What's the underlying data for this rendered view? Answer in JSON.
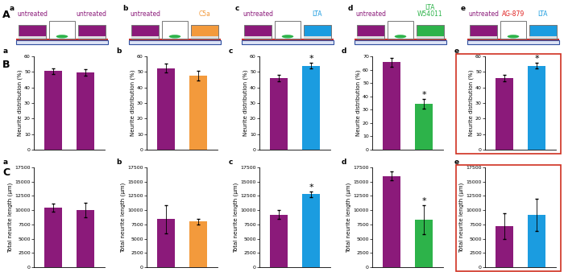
{
  "row_labels": [
    "A",
    "B",
    "C"
  ],
  "schematics": [
    {
      "panel": "a",
      "left_well": [
        {
          "text": "untreated",
          "color": "#8B1A7A"
        }
      ],
      "center_well": [],
      "right_well": [
        {
          "text": "untreated",
          "color": "#8B1A7A"
        }
      ]
    },
    {
      "panel": "b",
      "left_well": [
        {
          "text": "untreated",
          "color": "#8B1A7A"
        }
      ],
      "center_well": [],
      "right_well": [
        {
          "text": "C5a",
          "color": "#F39A3C"
        }
      ]
    },
    {
      "panel": "c",
      "left_well": [
        {
          "text": "untreated",
          "color": "#8B1A7A"
        }
      ],
      "center_well": [],
      "right_well": [
        {
          "text": "LTA",
          "color": "#1B9CE0"
        }
      ]
    },
    {
      "panel": "d",
      "left_well": [
        {
          "text": "untreated",
          "color": "#8B1A7A"
        }
      ],
      "center_well": [],
      "right_well": [
        {
          "text": "LTA",
          "color": "#2DB34A"
        },
        {
          "text": "W54011",
          "color": "#2DB34A"
        }
      ]
    },
    {
      "panel": "e",
      "left_well": [
        {
          "text": "untreated",
          "color": "#8B1A7A"
        }
      ],
      "center_well": [
        {
          "text": "AG-879",
          "color": "#E02020"
        }
      ],
      "right_well": [
        {
          "text": "LTA",
          "color": "#1B9CE0"
        }
      ]
    }
  ],
  "chart_data": [
    {
      "type": "bar",
      "panel": "a",
      "y_label": "Neurite distribution (%)",
      "categories": [
        null,
        null
      ],
      "values": [
        50.5,
        49.5
      ],
      "errors": [
        2,
        2
      ],
      "colors": [
        "#8B1A7A",
        "#8B1A7A"
      ],
      "ylim": [
        0,
        60
      ],
      "yticks": [
        0,
        10,
        20,
        30,
        40,
        50,
        60
      ]
    },
    {
      "type": "bar",
      "panel": "b",
      "y_label": "Neurite distribution (%)",
      "categories": [
        null,
        null
      ],
      "values": [
        52.5,
        47.5
      ],
      "errors": [
        3,
        3
      ],
      "colors": [
        "#8B1A7A",
        "#F39A3C"
      ],
      "ylim": [
        0,
        60
      ],
      "yticks": [
        0,
        10,
        20,
        30,
        40,
        50,
        60
      ]
    },
    {
      "type": "bar",
      "panel": "c",
      "y_label": "Neurite distribution (%)",
      "categories": [
        null,
        null
      ],
      "values": [
        46,
        54
      ],
      "errors": [
        2,
        2
      ],
      "colors": [
        "#8B1A7A",
        "#1B9CE0"
      ],
      "ylim": [
        0,
        60
      ],
      "yticks": [
        0,
        10,
        20,
        30,
        40,
        50,
        60
      ],
      "annotations": [
        {
          "text": "*",
          "bar": 1
        }
      ]
    },
    {
      "type": "bar",
      "panel": "d",
      "y_label": "Neurite distribution (%)",
      "categories": [
        null,
        null
      ],
      "values": [
        65.5,
        34.5
      ],
      "errors": [
        3.5,
        3.5
      ],
      "colors": [
        "#8B1A7A",
        "#2DB34A"
      ],
      "ylim": [
        0,
        70
      ],
      "yticks": [
        0,
        10,
        20,
        30,
        40,
        50,
        60,
        70
      ],
      "annotations": [
        {
          "text": "*",
          "bar": 1
        }
      ]
    },
    {
      "type": "bar",
      "panel": "e",
      "y_label": "Neurite distribution (%)",
      "categories": [
        null,
        null
      ],
      "values": [
        46,
        54
      ],
      "errors": [
        2,
        2
      ],
      "colors": [
        "#8B1A7A",
        "#1B9CE0"
      ],
      "ylim": [
        0,
        60
      ],
      "yticks": [
        0,
        10,
        20,
        30,
        40,
        50,
        60
      ],
      "annotations": [
        {
          "text": "*",
          "bar": 1
        }
      ]
    },
    {
      "type": "bar",
      "panel": "a",
      "y_label": "Total neurite length (µm)",
      "categories": [
        null,
        null
      ],
      "values": [
        10500,
        10000
      ],
      "errors": [
        700,
        1300
      ],
      "colors": [
        "#8B1A7A",
        "#8B1A7A"
      ],
      "ylim": [
        0,
        17500
      ],
      "yticks": [
        0,
        2500,
        5000,
        7500,
        10000,
        12500,
        15000,
        17500
      ]
    },
    {
      "type": "bar",
      "panel": "b",
      "y_label": "Total neurite length (µm)",
      "categories": [
        null,
        null
      ],
      "values": [
        8400,
        8000
      ],
      "errors": [
        2500,
        500
      ],
      "colors": [
        "#8B1A7A",
        "#F39A3C"
      ],
      "ylim": [
        0,
        17500
      ],
      "yticks": [
        0,
        2500,
        5000,
        7500,
        10000,
        12500,
        15000,
        17500
      ]
    },
    {
      "type": "bar",
      "panel": "c",
      "y_label": "Total neurite length (µm)",
      "categories": [
        null,
        null
      ],
      "values": [
        9200,
        12800
      ],
      "errors": [
        800,
        500
      ],
      "colors": [
        "#8B1A7A",
        "#1B9CE0"
      ],
      "ylim": [
        0,
        17500
      ],
      "yticks": [
        0,
        2500,
        5000,
        7500,
        10000,
        12500,
        15000,
        17500
      ],
      "annotations": [
        {
          "text": "*",
          "bar": 1
        }
      ]
    },
    {
      "type": "bar",
      "panel": "d",
      "y_label": "Total neurite length (µm)",
      "categories": [
        null,
        null
      ],
      "values": [
        16000,
        8300
      ],
      "errors": [
        800,
        2500
      ],
      "colors": [
        "#8B1A7A",
        "#2DB34A"
      ],
      "ylim": [
        0,
        17500
      ],
      "yticks": [
        0,
        2500,
        5000,
        7500,
        10000,
        12500,
        15000,
        17500
      ],
      "annotations": [
        {
          "text": "*",
          "bar": 1
        }
      ]
    },
    {
      "type": "bar",
      "panel": "e",
      "y_label": "Total neurite length (µm)",
      "categories": [
        null,
        null
      ],
      "values": [
        7200,
        9200
      ],
      "errors": [
        2300,
        2800
      ],
      "colors": [
        "#8B1A7A",
        "#1B9CE0"
      ],
      "ylim": [
        0,
        17500
      ],
      "yticks": [
        0,
        2500,
        5000,
        7500,
        10000,
        12500,
        15000,
        17500
      ]
    }
  ]
}
